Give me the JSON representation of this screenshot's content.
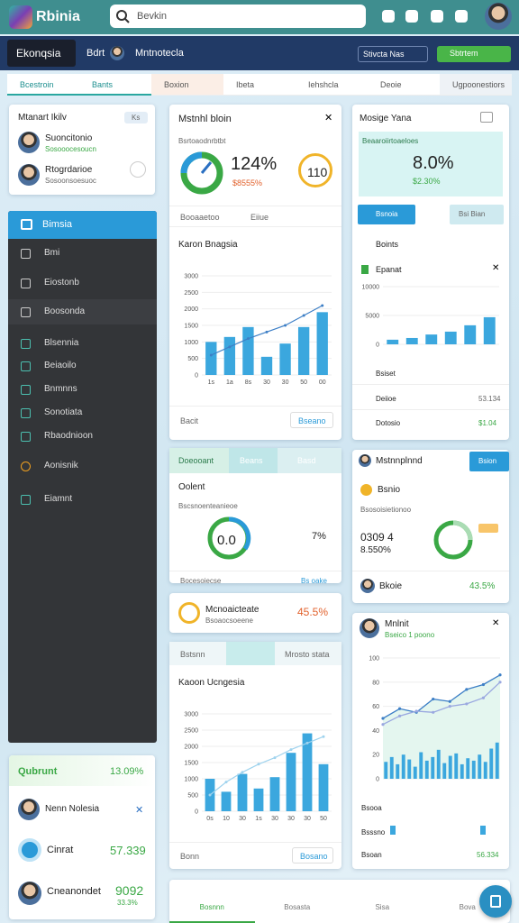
{
  "topbar": {
    "logo": "Rbinia",
    "search": "Bevkin"
  },
  "navbar": {
    "brand": "Ekonqsia",
    "user": "Bdrt",
    "title": "Mntnotecla",
    "select": "Stivcta Nas",
    "button": "Sbtrtem"
  },
  "tabs": [
    "Bcestroin",
    "Bants",
    "Boxion",
    "Ibeta",
    "Iehshcla",
    "Deoie",
    "Ugpoonestiors"
  ],
  "team_card": {
    "title": "Mtanart Ikilv",
    "badge": "Ks",
    "people": [
      {
        "name": "Suoncitonio",
        "sub": "Sosooocesoucn"
      },
      {
        "name": "Rtogrdarioe",
        "sub": "Sosoonsoesuoc"
      }
    ]
  },
  "sidebar": {
    "header": "Bimsia",
    "items": [
      "Bmi",
      "Eiostonb",
      "Boosonda",
      "Blsennia",
      "Beiaoilo",
      "Bnmnns",
      "Sonotiata",
      "Rbaodnioon",
      "Aonisnik",
      "Eiamnt"
    ]
  },
  "summary_card": {
    "title": "Qubrunt",
    "value": "13.09%",
    "person": "Nenn Nolesia",
    "row1_label": "Cinrat",
    "row1_value": "57.339",
    "row2_label": "Cneanondet",
    "row2_value": "9092",
    "row2_sub": "33.3%"
  },
  "metric_card": {
    "title": "Mstnhl bloin",
    "subtitle": "Bsrtoaodnrbtbt",
    "big": "124%",
    "small": "$8555%",
    "badge": "110",
    "filter": "Booaaetoo",
    "filter2": "Eiiue",
    "chart": {
      "type": "bar",
      "title": "Karon Bnagsia",
      "color": "#3ba7de",
      "line_color": "#3d7fc6",
      "categories": [
        "1s",
        "1a",
        "8s",
        "30",
        "30",
        "50",
        "00"
      ],
      "values": [
        1000,
        1150,
        1450,
        550,
        950,
        1450,
        1900
      ],
      "lines": [
        [
          600,
          850,
          1100,
          1300,
          1500,
          1800,
          2100
        ]
      ],
      "ylim": [
        0,
        3000
      ],
      "yticks": [
        0,
        500,
        1000,
        1500,
        2000,
        2500,
        3000
      ]
    },
    "footer": "Bacit",
    "footer_button": "Bseano"
  },
  "right_card": {
    "title": "Mosige Yana",
    "subtitle": "Beaaroiirtoaeloes",
    "big": "8.0%",
    "small": "$2.30%",
    "button": "Bsnoia",
    "button2": "Bsi Bian",
    "row1": "Boints",
    "row2": "Epanat",
    "chart": {
      "type": "bar",
      "color": "#3ba7de",
      "categories": [
        null,
        null,
        null,
        null,
        null,
        null
      ],
      "values": [
        800,
        1100,
        1700,
        2200,
        3300,
        4700
      ],
      "ylim": [
        0,
        10000
      ],
      "yticks": [
        0,
        5000,
        10000
      ]
    },
    "item1": "Bsiset",
    "item2": "Deiioe",
    "item2_value": "53.134",
    "item3": "Dotosio",
    "item3_value": "$1.04"
  },
  "donut_card": {
    "tabs": [
      "Doeooant",
      "Beans",
      "Basd"
    ],
    "title": "Oolent",
    "subtitle": "Bscsnoenteanieoe",
    "donut": "0.0",
    "side": "7%",
    "row": "Bocesoiecse",
    "row_value": "Bs oake",
    "item": "Mcnoaicteate",
    "item_sub": "Bsoaocsoeene",
    "item_value": "45.5%"
  },
  "plan_card": {
    "title": "Mstnnplnnd",
    "button": "Bsion",
    "label": "Bsnio",
    "subtitle": "Bsosoisietionoo",
    "value": "0309 4",
    "value_sub": "8.550%",
    "footer": "Bkoie",
    "footer_value": "43.5%"
  },
  "bottom_chart_card": {
    "tabs": [
      "Bstsnn",
      "Mrosto stata"
    ],
    "chart": {
      "type": "bar",
      "title": "Kaoon Ucngesia",
      "color": "#3ba7de",
      "line_color": "#9fd3ee",
      "categories": [
        "0s",
        "10",
        "30",
        "1s",
        "30",
        "30",
        "30",
        "50"
      ],
      "values": [
        1000,
        600,
        1150,
        700,
        1050,
        1800,
        2400,
        1450
      ],
      "lines": [
        [
          500,
          900,
          1200,
          1450,
          1650,
          1900,
          2100,
          2300
        ]
      ],
      "ylim": [
        0,
        3000
      ],
      "yticks": [
        0,
        500,
        1000,
        1500,
        2000,
        2500,
        3000
      ]
    },
    "footer": "Bonn",
    "footer_button": "Bosano"
  },
  "trend_card": {
    "title": "Mnlnit",
    "subtitle": "Bseico 1 poono",
    "chart": {
      "type": "line",
      "color": "#3ba7de",
      "line_color": "#3d7fc6",
      "line2_color": "#9aa8e0",
      "categories": [
        null,
        null,
        null,
        null,
        null,
        null,
        null,
        null
      ],
      "lines": [
        [
          50,
          58,
          55,
          66,
          64,
          74,
          78,
          86
        ],
        [
          45,
          52,
          56,
          55,
          60,
          62,
          67,
          80
        ]
      ],
      "values": [
        14,
        18,
        12,
        20,
        16,
        10,
        22,
        15,
        18,
        24,
        13,
        19,
        21,
        12,
        17,
        15,
        20,
        14,
        25,
        30
      ],
      "ylim": [
        0,
        100
      ],
      "yticks": [
        0,
        20,
        40,
        60,
        80,
        100
      ]
    },
    "row1": "Bsooa",
    "row2": "Bsssno",
    "row3": "Bsoan",
    "row3_value": "56.334"
  },
  "bottom_nav": [
    "Bosnnn",
    "Bosasta",
    "Sisa",
    "Bova"
  ]
}
